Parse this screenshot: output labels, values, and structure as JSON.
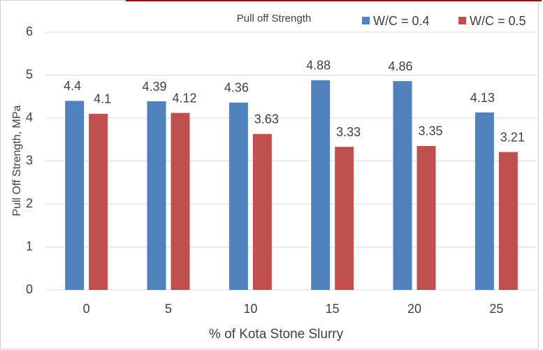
{
  "chart_data": {
    "type": "bar",
    "title": "Pull off Strength",
    "x_label": "% of  Kota Stone Slurry",
    "y_label": "Pull Off Strength, MPa",
    "categories": [
      "0",
      "5",
      "10",
      "15",
      "20",
      "25"
    ],
    "series": [
      {
        "name": "W/C = 0.4",
        "color": "#4f81bd",
        "values": [
          4.4,
          4.39,
          4.36,
          4.88,
          4.86,
          4.13
        ]
      },
      {
        "name": "W/C = 0.5",
        "color": "#c0504d",
        "values": [
          4.1,
          4.12,
          3.63,
          3.33,
          3.35,
          3.21
        ]
      }
    ],
    "ylim": [
      0,
      6
    ],
    "yticks": [
      0,
      1,
      2,
      3,
      4,
      5,
      6
    ],
    "grid": true,
    "legend": "top-right"
  }
}
